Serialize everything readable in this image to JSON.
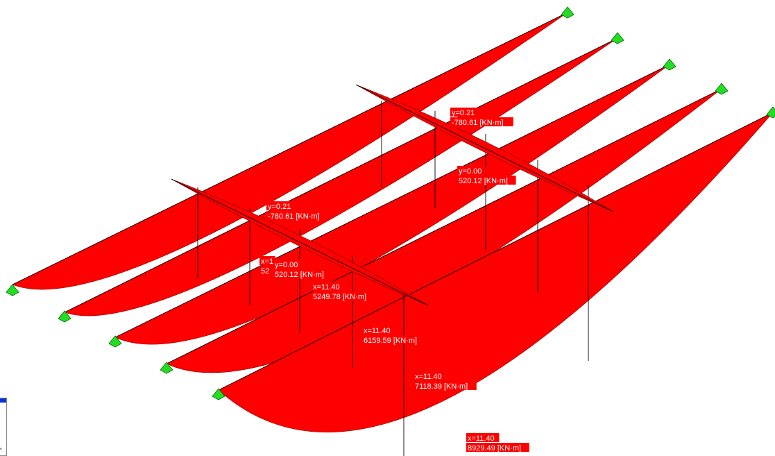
{
  "diagram": {
    "type": "bending-moment-diagram",
    "fill_color": "#ff0000",
    "support_color": "#22dd22",
    "labels": [
      {
        "id": "cross-1-end-moment",
        "lines": [
          "y=0.21",
          "-780.61 [KN·m]"
        ]
      },
      {
        "id": "cross-1-mid-moment",
        "lines": [
          "y=0.00",
          "520.12 [KN·m]"
        ]
      },
      {
        "id": "cross-2-end-moment",
        "lines": [
          "y=0.21",
          "-780.61 [KN·m]"
        ]
      },
      {
        "id": "cross-2-mid-moment",
        "lines": [
          "y=0.00",
          "520.12 [KN·m]"
        ]
      },
      {
        "id": "girder-2-moment-partial",
        "lines": [
          "x=1",
          "52"
        ]
      },
      {
        "id": "girder-3-moment",
        "lines": [
          "x=11.40",
          "5249.78 [KN·m]"
        ]
      },
      {
        "id": "girder-4-moment",
        "lines": [
          "x=11.40",
          "6159.59 [KN·m]"
        ]
      },
      {
        "id": "girder-5-moment",
        "lines": [
          "x=11.40",
          "7118.39 [KN·m]"
        ]
      },
      {
        "id": "girder-6-moment",
        "lines": [
          "x=11.40",
          "8929.49 [KN·m]"
        ]
      }
    ]
  },
  "legend": {
    "caption": "e"
  }
}
